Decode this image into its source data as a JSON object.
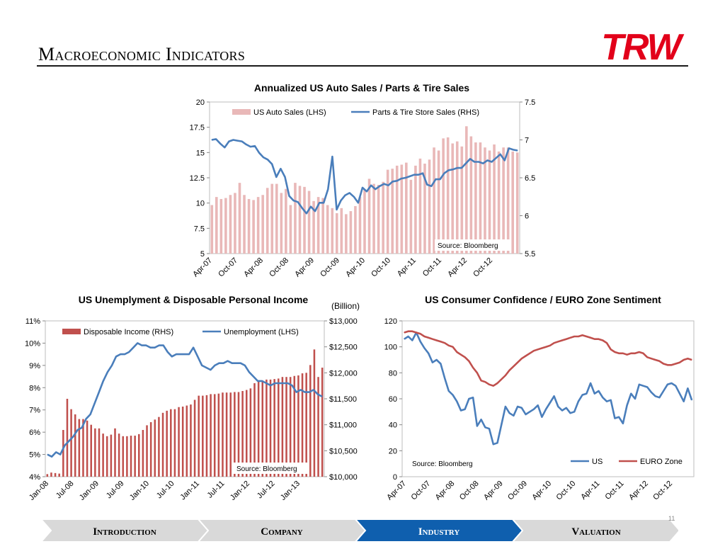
{
  "page": {
    "title": "Macroeconomic Indicators",
    "page_number": "11",
    "logo_text": "TRW",
    "nav": [
      {
        "label": "Introduction",
        "active": false
      },
      {
        "label": "Company",
        "active": false
      },
      {
        "label": "Industry",
        "active": true
      },
      {
        "label": "Valuation",
        "active": false
      }
    ]
  },
  "colors": {
    "bar_pink": "#E9B8B8",
    "line_blue": "#4A7EBB",
    "bar_red": "#C0504D",
    "line_red": "#C0504D",
    "logo_red": "#E2001A",
    "nav_grey": "#D9D9D9",
    "nav_active": "#0F5FAE"
  },
  "chart_data": [
    {
      "id": "auto",
      "type": "bar+line",
      "title": "Annualized US Auto Sales / Parts & Tire Sales",
      "source": "Source: Bloomberg",
      "legend": "top-center",
      "ylim": [
        5,
        20
      ],
      "yticks": [
        "5",
        "7.5",
        "10",
        "12.5",
        "15",
        "17.5",
        "20"
      ],
      "y2lim": [
        5.5,
        7.5
      ],
      "y2ticks": [
        "5.5",
        "6",
        "6.5",
        "7",
        "7.5"
      ],
      "xticks": [
        "Apr-07",
        "Oct-07",
        "Apr-08",
        "Oct-08",
        "Apr-09",
        "Oct-09",
        "Apr-10",
        "Oct-10",
        "Apr-11",
        "Oct-11",
        "Apr-12",
        "Oct-12"
      ],
      "series": [
        {
          "name": "US Auto Sales (LHS)",
          "kind": "bar",
          "axis": "left",
          "values": [
            9.8,
            10.6,
            10.4,
            10.5,
            10.8,
            11.0,
            12.0,
            10.8,
            10.4,
            10.3,
            10.6,
            10.8,
            11.5,
            11.9,
            11.9,
            11.0,
            11.4,
            9.8,
            12.0,
            11.7,
            11.6,
            11.2,
            10.2,
            10.6,
            10.5,
            9.8,
            9.5,
            9.0,
            9.5,
            8.9,
            9.2,
            9.7,
            10.6,
            11.3,
            12.4,
            11.9,
            11.8,
            12.1,
            13.3,
            13.4,
            13.7,
            13.8,
            14.0,
            12.3,
            13.7,
            14.4,
            13.9,
            14.3,
            15.5,
            15.2,
            16.4,
            16.5,
            15.9,
            16.1,
            15.6,
            17.6,
            16.6,
            16.0,
            16.0,
            15.5,
            15.2,
            15.8,
            15.1,
            15.5,
            15.5,
            15.1,
            15.0
          ]
        },
        {
          "name": "Parts & Tire Store Sales (RHS)",
          "kind": "line",
          "axis": "right",
          "values": [
            7.0,
            7.01,
            6.95,
            6.9,
            6.98,
            7.0,
            6.99,
            6.98,
            6.94,
            6.91,
            6.92,
            6.83,
            6.77,
            6.74,
            6.68,
            6.51,
            6.62,
            6.51,
            6.26,
            6.2,
            6.18,
            6.1,
            6.03,
            6.12,
            6.06,
            6.17,
            6.17,
            6.35,
            6.78,
            6.08,
            6.2,
            6.27,
            6.3,
            6.25,
            6.17,
            6.37,
            6.32,
            6.4,
            6.35,
            6.39,
            6.42,
            6.4,
            6.45,
            6.46,
            6.49,
            6.5,
            6.52,
            6.54,
            6.54,
            6.56,
            6.41,
            6.39,
            6.48,
            6.48,
            6.56,
            6.6,
            6.61,
            6.63,
            6.63,
            6.69,
            6.75,
            6.71,
            6.71,
            6.69,
            6.73,
            6.71,
            6.76,
            6.81,
            6.73,
            6.89,
            6.87,
            6.86
          ]
        }
      ]
    },
    {
      "id": "unemp",
      "type": "bar+line",
      "title": "US Unemplyment & Disposable Personal Income",
      "unit_label": "(Billion)",
      "source": "Source: Bloomberg",
      "legend": "top",
      "ylim": [
        4,
        11
      ],
      "yticks": [
        "4%",
        "5%",
        "6%",
        "7%",
        "8%",
        "9%",
        "10%",
        "11%"
      ],
      "y2lim": [
        10000,
        13000
      ],
      "y2ticks": [
        "$10,000",
        "$10,500",
        "$11,000",
        "$11,500",
        "$12,000",
        "$12,500",
        "$13,000"
      ],
      "xticks": [
        "Jan-08",
        "Jul-08",
        "Jan-09",
        "Jul-09",
        "Jan-10",
        "Jul-10",
        "Jan-11",
        "Jul-11",
        "Jan-12",
        "Jul-12",
        "Jan-13"
      ],
      "series": [
        {
          "name": "Disposable Income (RHS)",
          "kind": "bar",
          "axis": "right",
          "values": [
            10050,
            10080,
            10070,
            10060,
            10900,
            11500,
            11300,
            11200,
            11110,
            11110,
            11080,
            11000,
            10930,
            10930,
            10830,
            10780,
            10810,
            10930,
            10830,
            10780,
            10780,
            10790,
            10790,
            10820,
            10900,
            10990,
            11050,
            11100,
            11150,
            11230,
            11270,
            11300,
            11300,
            11340,
            11350,
            11370,
            11390,
            11480,
            11560,
            11560,
            11570,
            11590,
            11590,
            11600,
            11620,
            11620,
            11620,
            11630,
            11630,
            11650,
            11670,
            11700,
            11800,
            11830,
            11850,
            11870,
            11870,
            11880,
            11890,
            11920,
            11920,
            11920,
            11940,
            11950,
            11990,
            12000,
            12150,
            12450,
            11920,
            12100
          ]
        },
        {
          "name": "Unemployment (LHS)",
          "kind": "line",
          "axis": "left",
          "values": [
            5.0,
            4.9,
            5.1,
            5.0,
            5.4,
            5.6,
            5.8,
            6.1,
            6.2,
            6.6,
            6.8,
            7.3,
            7.8,
            8.3,
            8.7,
            9.0,
            9.4,
            9.5,
            9.5,
            9.6,
            9.8,
            10.0,
            9.9,
            9.9,
            9.8,
            9.8,
            9.9,
            9.9,
            9.6,
            9.4,
            9.5,
            9.5,
            9.5,
            9.5,
            9.8,
            9.4,
            9.0,
            8.9,
            8.8,
            9.0,
            9.1,
            9.1,
            9.2,
            9.1,
            9.1,
            9.1,
            9.0,
            8.7,
            8.5,
            8.3,
            8.3,
            8.2,
            8.1,
            8.2,
            8.2,
            8.2,
            8.2,
            8.1,
            7.8,
            7.9,
            7.8,
            7.8,
            7.9,
            7.7,
            7.6
          ]
        }
      ]
    },
    {
      "id": "conf",
      "type": "line",
      "title": "US Consumer Confidence / EURO Zone Sentiment",
      "source": "Source: Bloomberg",
      "legend": "bottom-right",
      "ylim": [
        0,
        120
      ],
      "yticks": [
        "0",
        "20",
        "40",
        "60",
        "80",
        "100",
        "120"
      ],
      "xticks": [
        "Apr-07",
        "Oct-07",
        "Apr-08",
        "Oct-08",
        "Apr-09",
        "Oct-09",
        "Apr-10",
        "Oct-10",
        "Apr-11",
        "Oct-11",
        "Apr-12",
        "Oct-12"
      ],
      "series": [
        {
          "name": "US",
          "kind": "line",
          "values": [
            106,
            108,
            105,
            111,
            104,
            99,
            95,
            88,
            90,
            87,
            76,
            66,
            63,
            58,
            51,
            52,
            60,
            61,
            39,
            44,
            38,
            37,
            25,
            26,
            40,
            54,
            49,
            47,
            54,
            53,
            48,
            50,
            52,
            55,
            46,
            52,
            57,
            62,
            54,
            51,
            53,
            49,
            50,
            58,
            63,
            64,
            72,
            64,
            66,
            61,
            58,
            59,
            45,
            46,
            41,
            55,
            64,
            60,
            71,
            70,
            69,
            65,
            62,
            61,
            66,
            71,
            72,
            70,
            64,
            58,
            68,
            59
          ]
        },
        {
          "name": "EURO Zone",
          "kind": "line",
          "values": [
            111,
            112,
            112,
            111,
            110,
            108,
            107,
            106,
            105,
            104,
            103,
            101,
            100,
            96,
            94,
            92,
            89,
            84,
            80,
            74,
            73,
            71,
            70,
            72,
            75,
            78,
            82,
            85,
            88,
            91,
            93,
            95,
            97,
            98,
            99,
            100,
            101,
            103,
            104,
            105,
            106,
            107,
            108,
            108,
            109,
            108,
            107,
            106,
            106,
            105,
            103,
            98,
            96,
            95,
            95,
            94,
            95,
            95,
            96,
            95,
            92,
            91,
            90,
            89,
            87,
            86,
            86,
            87,
            88,
            90,
            91,
            90
          ]
        }
      ]
    }
  ]
}
